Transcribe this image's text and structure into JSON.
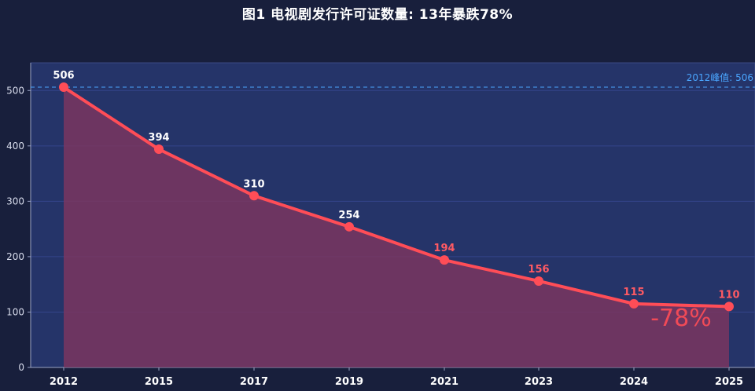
{
  "title": "图1  电视剧发行许可证数量: 13年暴跌78%",
  "colors": {
    "background": "#181f3c",
    "plot_bg": "#253469",
    "line": "#ff4d57",
    "area": "#7a3660",
    "reference_line": "#4aa6ff",
    "label_white": "#ffffff",
    "label_red": "#ff5a63"
  },
  "chart_data": {
    "type": "area",
    "categories": [
      "2012",
      "2015",
      "2017",
      "2019",
      "2021",
      "2023",
      "2024",
      "2025"
    ],
    "series": [
      {
        "values": [
          506,
          394,
          310,
          254,
          194,
          156,
          115,
          110
        ]
      }
    ],
    "data_labels": [
      "506",
      "394",
      "310",
      "254",
      "194",
      "156",
      "115",
      "110"
    ],
    "highlight_from_index": 4,
    "ylim": [
      0,
      550
    ],
    "yticks": [
      0,
      100,
      200,
      300,
      400,
      500
    ],
    "ytick_labels": [
      "0",
      "100",
      "200",
      "300",
      "400",
      "500"
    ],
    "reference_line": {
      "value": 506,
      "label": "2012峰值: 506"
    },
    "annotation": "-78%",
    "grid": true,
    "xlabel": "",
    "ylabel": ""
  }
}
